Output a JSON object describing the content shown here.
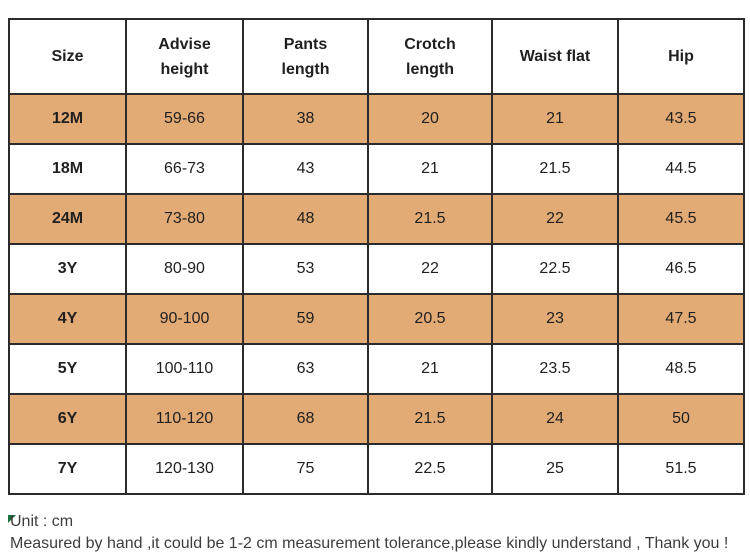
{
  "table": {
    "columns": [
      "Size",
      "Advise height",
      "Pants length",
      "Crotch length",
      "Waist flat",
      "Hip"
    ],
    "rows": [
      {
        "shaded": true,
        "cells": [
          "12M",
          "59-66",
          "38",
          "20",
          "21",
          "43.5"
        ]
      },
      {
        "shaded": false,
        "cells": [
          "18M",
          "66-73",
          "43",
          "21",
          "21.5",
          "44.5"
        ]
      },
      {
        "shaded": true,
        "cells": [
          "24M",
          "73-80",
          "48",
          "21.5",
          "22",
          "45.5"
        ]
      },
      {
        "shaded": false,
        "cells": [
          "3Y",
          "80-90",
          "53",
          "22",
          "22.5",
          "46.5"
        ]
      },
      {
        "shaded": true,
        "cells": [
          "4Y",
          "90-100",
          "59",
          "20.5",
          "23",
          "47.5"
        ]
      },
      {
        "shaded": false,
        "cells": [
          "5Y",
          "100-110",
          "63",
          "21",
          "23.5",
          "48.5"
        ]
      },
      {
        "shaded": true,
        "cells": [
          "6Y",
          "110-120",
          "68",
          "21.5",
          "24",
          "50"
        ]
      },
      {
        "shaded": false,
        "cells": [
          "7Y",
          "120-130",
          "75",
          "22.5",
          "25",
          "51.5"
        ]
      }
    ]
  },
  "footer": {
    "unit_note": "Unit : cm",
    "tolerance_note": "Measured by hand ,it could be 1-2 cm measurement tolerance,please kindly understand , Thank you !"
  },
  "colors": {
    "shaded_row": "#e2aa75",
    "border": "#2b2b2b",
    "marker_green": "#17713f"
  }
}
